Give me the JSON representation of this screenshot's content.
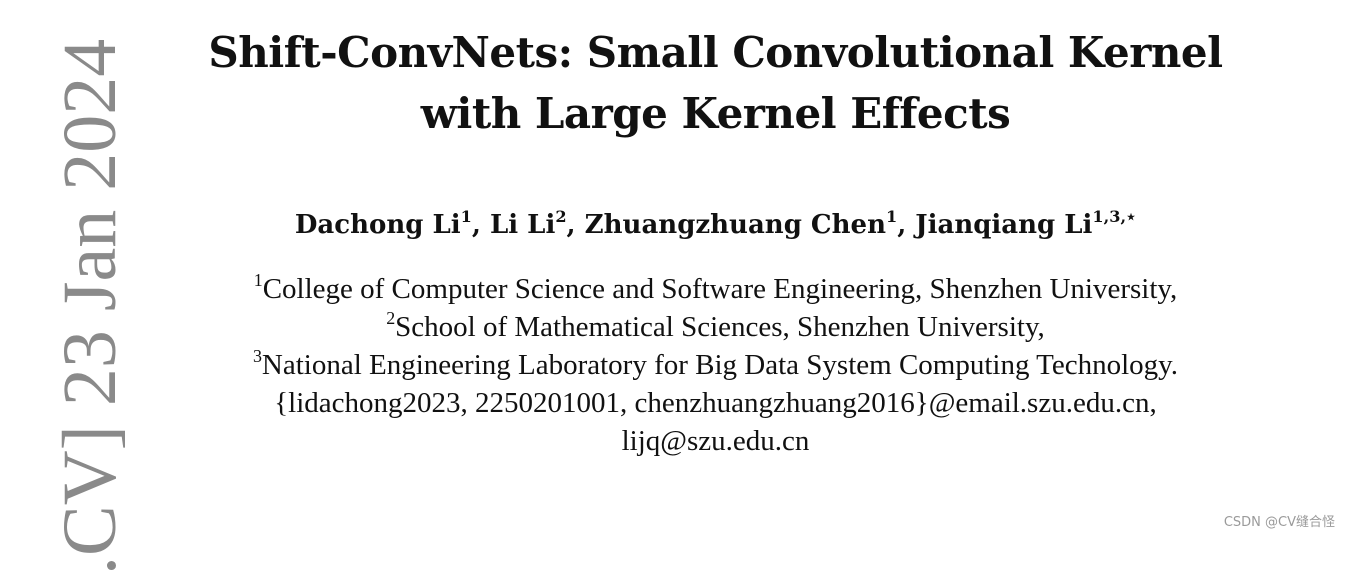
{
  "arxiv_stamp": ".CV] 23 Jan 2024",
  "title": {
    "line1": "Shift-ConvNets: Small Convolutional Kernel",
    "line2": "with Large Kernel Effects"
  },
  "authors": [
    {
      "name": "Dachong Li",
      "sup": "1"
    },
    {
      "name": "Li Li",
      "sup": "2"
    },
    {
      "name": "Zhuangzhuang Chen",
      "sup": "1"
    },
    {
      "name": "Jianqiang Li",
      "sup": "1,3,⋆"
    }
  ],
  "author_separator": ", ",
  "affiliations": [
    {
      "sup": "1",
      "text": "College of Computer Science and Software Engineering, Shenzhen University,"
    },
    {
      "sup": "2",
      "text": "School of Mathematical Sciences, Shenzhen University,"
    },
    {
      "sup": "3",
      "text": "National Engineering Laboratory for Big Data System Computing Technology."
    }
  ],
  "emails": [
    "{lidachong2023, 2250201001, chenzhuangzhuang2016}@email.szu.edu.cn,",
    "lijq@szu.edu.cn"
  ],
  "watermark": "CSDN @CV缝合怪"
}
